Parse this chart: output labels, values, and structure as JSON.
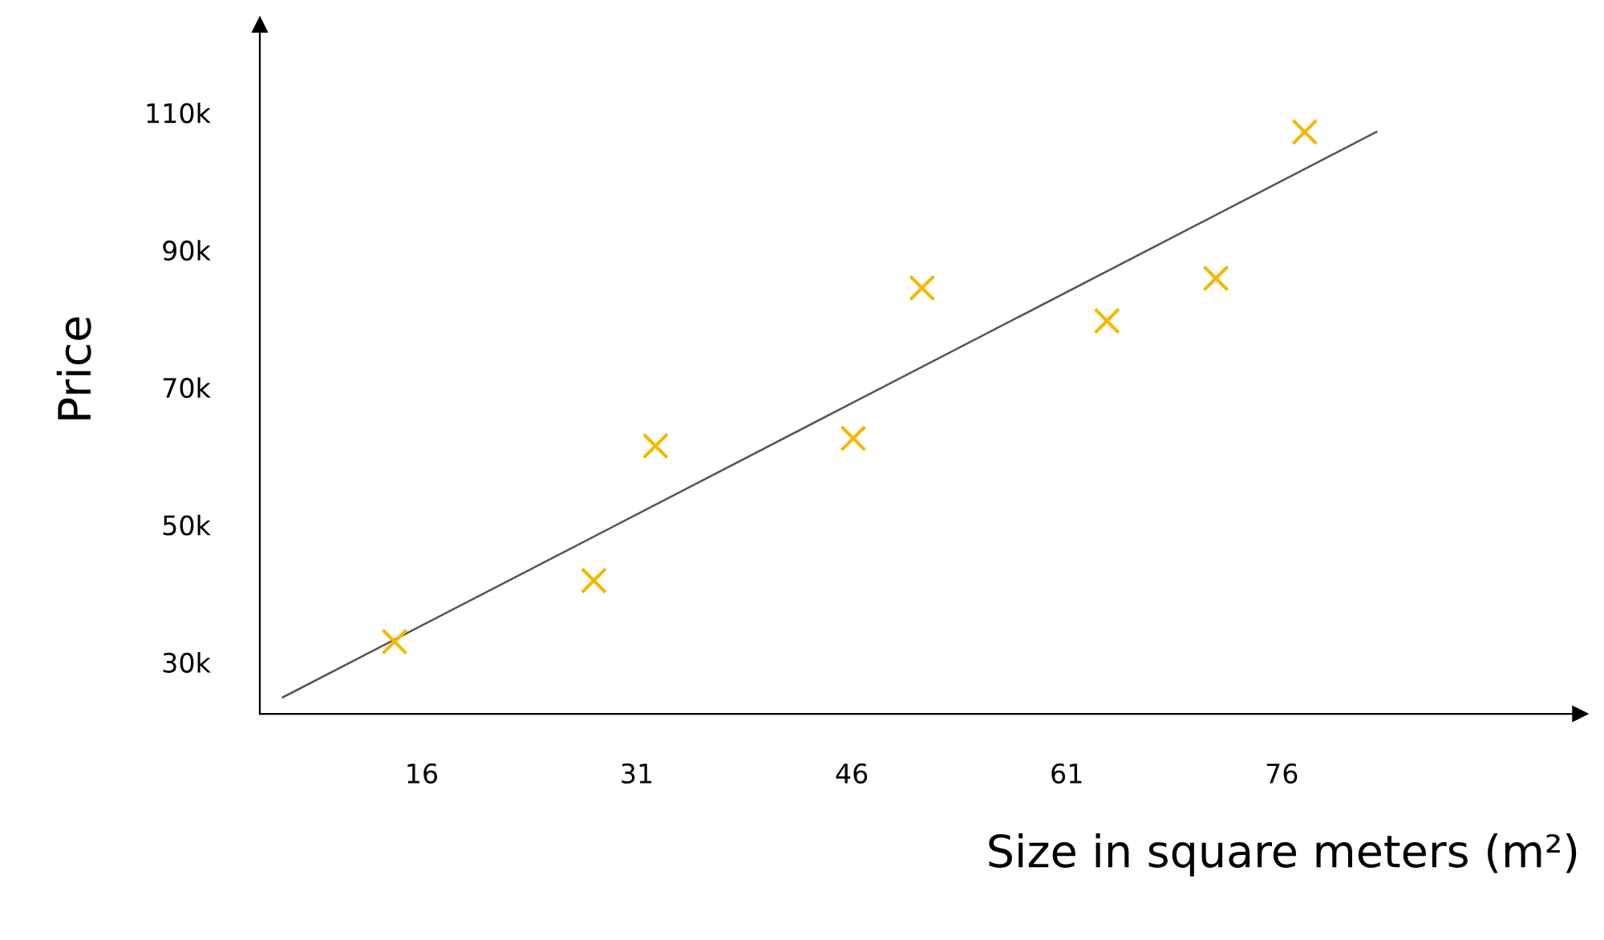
{
  "chart_data": {
    "type": "scatter",
    "xlabel": "Size in square meters (m²)",
    "ylabel": "Price",
    "xlim": [
      4.7,
      96.8
    ],
    "ylim": [
      22.5,
      122.8
    ],
    "xticks": [
      16,
      31,
      46,
      61,
      76
    ],
    "yticks": [
      {
        "value": 30,
        "label": "30k"
      },
      {
        "value": 50,
        "label": "50k"
      },
      {
        "value": 70,
        "label": "70k"
      },
      {
        "value": 90,
        "label": "90k"
      },
      {
        "value": 110,
        "label": "110k"
      }
    ],
    "grid": false,
    "legend": false,
    "series": [
      {
        "type": "scatter",
        "color": "#f5b800",
        "marker": "cross",
        "x": [
          14.1,
          28.0,
          32.3,
          46.1,
          50.9,
          63.8,
          71.4,
          77.6
        ],
        "values": [
          33.0,
          41.9,
          61.5,
          62.6,
          84.5,
          79.7,
          85.9,
          107.2
        ]
      },
      {
        "type": "line",
        "color": "#555555",
        "marker": "none",
        "x": [
          6.3,
          82.6
        ],
        "values": [
          24.9,
          107.2
        ]
      }
    ]
  }
}
